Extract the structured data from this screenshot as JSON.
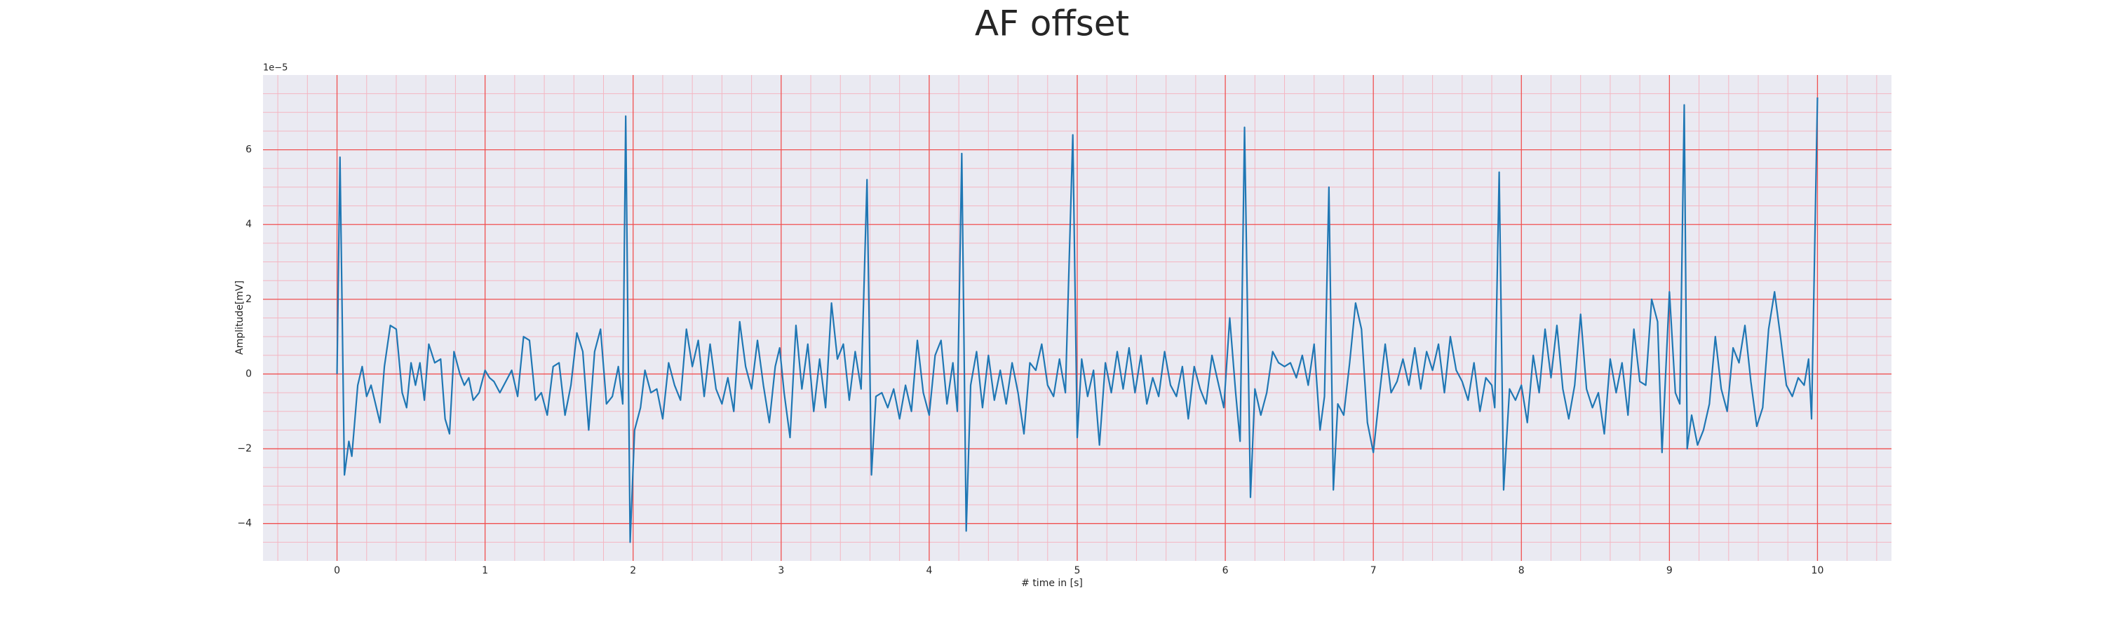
{
  "chart_data": {
    "type": "line",
    "title": "AF offset",
    "xlabel": "# time in [s]",
    "ylabel": "Amplitude[mV]",
    "y_offset_label": "1e−5",
    "color": "#1f77b4",
    "grid": true,
    "xlim": [
      -0.5,
      10.5
    ],
    "ylim": [
      -5,
      8
    ],
    "xticks": [
      0,
      1,
      2,
      3,
      4,
      5,
      6,
      7,
      8,
      9,
      10
    ],
    "yticks": [
      {
        "value": -4,
        "label": "−4"
      },
      {
        "value": -2,
        "label": "−2"
      },
      0,
      2,
      4,
      6
    ],
    "xticks_minor": [
      -0.4,
      -0.2,
      0.2,
      0.4,
      0.6,
      0.8,
      1.2,
      1.4,
      1.6,
      1.8,
      2.2,
      2.4,
      2.6,
      2.8,
      3.2,
      3.4,
      3.6,
      3.8,
      4.2,
      4.4,
      4.6,
      4.8,
      5.2,
      5.4,
      5.6,
      5.8,
      6.2,
      6.4,
      6.6,
      6.8,
      7.2,
      7.4,
      7.6,
      7.8,
      8.2,
      8.4,
      8.6,
      8.8,
      9.2,
      9.4,
      9.6,
      9.8,
      10.2,
      10.4
    ],
    "yticks_minor": [
      -4.5,
      -3.5,
      -3,
      -2.5,
      -1.5,
      -1,
      -0.5,
      0.5,
      1,
      1.5,
      2.5,
      3,
      3.5,
      4.5,
      5,
      5.5,
      6.5,
      7,
      7.5
    ],
    "x": [
      0,
      0.02,
      0.05,
      0.08,
      0.1,
      0.14,
      0.17,
      0.2,
      0.23,
      0.26,
      0.29,
      0.32,
      0.36,
      0.4,
      0.44,
      0.47,
      0.5,
      0.53,
      0.56,
      0.59,
      0.62,
      0.66,
      0.7,
      0.73,
      0.76,
      0.79,
      0.83,
      0.86,
      0.89,
      0.92,
      0.96,
      1,
      1.03,
      1.06,
      1.1,
      1.14,
      1.18,
      1.22,
      1.26,
      1.3,
      1.34,
      1.38,
      1.42,
      1.46,
      1.5,
      1.54,
      1.58,
      1.62,
      1.66,
      1.7,
      1.74,
      1.78,
      1.82,
      1.86,
      1.9,
      1.93,
      1.95,
      1.98,
      2.01,
      2.05,
      2.08,
      2.12,
      2.16,
      2.2,
      2.24,
      2.28,
      2.32,
      2.36,
      2.4,
      2.44,
      2.48,
      2.52,
      2.56,
      2.6,
      2.64,
      2.68,
      2.72,
      2.76,
      2.8,
      2.84,
      2.88,
      2.92,
      2.96,
      2.99,
      3.02,
      3.06,
      3.1,
      3.14,
      3.18,
      3.22,
      3.26,
      3.3,
      3.34,
      3.38,
      3.42,
      3.46,
      3.5,
      3.54,
      3.58,
      3.61,
      3.64,
      3.68,
      3.72,
      3.76,
      3.8,
      3.84,
      3.88,
      3.92,
      3.96,
      4,
      4.04,
      4.08,
      4.12,
      4.16,
      4.19,
      4.22,
      4.25,
      4.28,
      4.32,
      4.36,
      4.4,
      4.44,
      4.48,
      4.52,
      4.56,
      4.6,
      4.64,
      4.68,
      4.72,
      4.76,
      4.8,
      4.84,
      4.88,
      4.92,
      4.97,
      5,
      5.03,
      5.07,
      5.11,
      5.15,
      5.19,
      5.23,
      5.27,
      5.31,
      5.35,
      5.39,
      5.43,
      5.47,
      5.51,
      5.55,
      5.59,
      5.63,
      5.67,
      5.71,
      5.75,
      5.79,
      5.83,
      5.87,
      5.91,
      5.95,
      5.99,
      6.03,
      6.07,
      6.1,
      6.13,
      6.17,
      6.2,
      6.24,
      6.28,
      6.32,
      6.36,
      6.4,
      6.44,
      6.48,
      6.52,
      6.56,
      6.6,
      6.64,
      6.67,
      6.7,
      6.73,
      6.76,
      6.8,
      6.84,
      6.88,
      6.92,
      6.96,
      7,
      7.04,
      7.08,
      7.12,
      7.16,
      7.2,
      7.24,
      7.28,
      7.32,
      7.36,
      7.4,
      7.44,
      7.48,
      7.52,
      7.56,
      7.6,
      7.64,
      7.68,
      7.72,
      7.76,
      7.8,
      7.82,
      7.85,
      7.88,
      7.92,
      7.96,
      8,
      8.04,
      8.08,
      8.12,
      8.16,
      8.2,
      8.24,
      8.28,
      8.32,
      8.36,
      8.4,
      8.44,
      8.48,
      8.52,
      8.56,
      8.6,
      8.64,
      8.68,
      8.72,
      8.76,
      8.8,
      8.84,
      8.88,
      8.92,
      8.95,
      9,
      9.04,
      9.07,
      9.1,
      9.12,
      9.15,
      9.19,
      9.23,
      9.27,
      9.31,
      9.35,
      9.39,
      9.43,
      9.47,
      9.51,
      9.55,
      9.59,
      9.63,
      9.67,
      9.71,
      9.75,
      9.79,
      9.83,
      9.87,
      9.91,
      9.94,
      9.96,
      10
    ],
    "values": [
      0,
      5.8,
      -2.7,
      -1.8,
      -2.2,
      -0.3,
      0.2,
      -0.6,
      -0.3,
      -0.8,
      -1.3,
      0.2,
      1.3,
      1.2,
      -0.5,
      -0.9,
      0.3,
      -0.3,
      0.3,
      -0.7,
      0.8,
      0.3,
      0.4,
      -1.2,
      -1.6,
      0.6,
      0,
      -0.3,
      -0.1,
      -0.7,
      -0.5,
      0.1,
      -0.1,
      -0.2,
      -0.5,
      -0.2,
      0.1,
      -0.6,
      1,
      0.9,
      -0.7,
      -0.5,
      -1.1,
      0.2,
      0.3,
      -1.1,
      -0.3,
      1.1,
      0.6,
      -1.5,
      0.6,
      1.2,
      -0.8,
      -0.6,
      0.2,
      -0.8,
      6.9,
      -4.5,
      -1.5,
      -0.9,
      0.1,
      -0.5,
      -0.4,
      -1.2,
      0.3,
      -0.3,
      -0.7,
      1.2,
      0.2,
      0.9,
      -0.6,
      0.8,
      -0.4,
      -0.8,
      -0.1,
      -1,
      1.4,
      0.2,
      -0.4,
      0.9,
      -0.3,
      -1.3,
      0.2,
      0.7,
      -0.5,
      -1.7,
      1.3,
      -0.4,
      0.8,
      -1,
      0.4,
      -0.9,
      1.9,
      0.4,
      0.8,
      -0.7,
      0.6,
      -0.4,
      5.2,
      -2.7,
      -0.6,
      -0.5,
      -0.9,
      -0.4,
      -1.2,
      -0.3,
      -1,
      0.9,
      -0.5,
      -1.1,
      0.5,
      0.9,
      -0.8,
      0.3,
      -1,
      5.9,
      -4.2,
      -0.3,
      0.6,
      -0.9,
      0.5,
      -0.7,
      0.1,
      -0.8,
      0.3,
      -0.5,
      -1.6,
      0.3,
      0.1,
      0.8,
      -0.3,
      -0.6,
      0.4,
      -0.5,
      6.4,
      -1.7,
      0.4,
      -0.6,
      0.1,
      -1.9,
      0.3,
      -0.5,
      0.6,
      -0.4,
      0.7,
      -0.5,
      0.5,
      -0.8,
      -0.1,
      -0.6,
      0.6,
      -0.3,
      -0.6,
      0.2,
      -1.2,
      0.2,
      -0.4,
      -0.8,
      0.5,
      -0.2,
      -0.9,
      1.5,
      -0.5,
      -1.8,
      6.6,
      -3.3,
      -0.4,
      -1.1,
      -0.5,
      0.6,
      0.3,
      0.2,
      0.3,
      -0.1,
      0.5,
      -0.3,
      0.8,
      -1.5,
      -0.6,
      5,
      -3.1,
      -0.8,
      -1.1,
      0.3,
      1.9,
      1.2,
      -1.3,
      -2.1,
      -0.6,
      0.8,
      -0.5,
      -0.2,
      0.4,
      -0.3,
      0.7,
      -0.4,
      0.6,
      0.1,
      0.8,
      -0.5,
      1,
      0.1,
      -0.2,
      -0.7,
      0.3,
      -1,
      -0.1,
      -0.3,
      -0.9,
      5.4,
      -3.1,
      -0.4,
      -0.7,
      -0.3,
      -1.3,
      0.5,
      -0.5,
      1.2,
      -0.1,
      1.3,
      -0.4,
      -1.2,
      -0.3,
      1.6,
      -0.4,
      -0.9,
      -0.5,
      -1.6,
      0.4,
      -0.5,
      0.3,
      -1.1,
      1.2,
      -0.2,
      -0.3,
      2,
      1.4,
      -2.1,
      2.2,
      -0.5,
      -0.8,
      7.2,
      -2,
      -1.1,
      -1.9,
      -1.5,
      -0.8,
      1,
      -0.4,
      -1,
      0.7,
      0.3,
      1.3,
      -0.2,
      -1.4,
      -0.9,
      1.2,
      2.2,
      1,
      -0.3,
      -0.6,
      -0.1,
      -0.3,
      0.4,
      -1.2,
      7.4
    ]
  }
}
